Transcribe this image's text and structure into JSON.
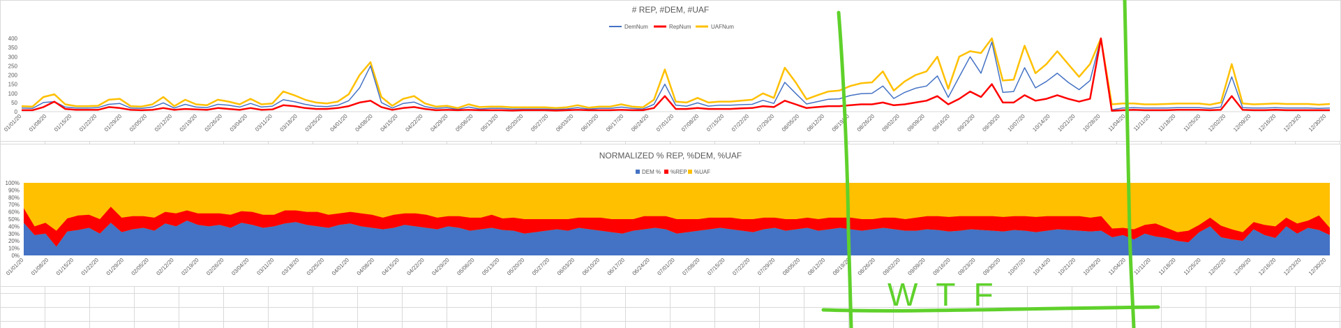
{
  "chart_data": [
    {
      "type": "line",
      "title": "# REP, #DEM, #UAF",
      "ylim": [
        0,
        400
      ],
      "yticks": [
        0,
        50,
        100,
        150,
        200,
        250,
        300,
        350,
        400
      ],
      "grid": false,
      "legend_position": "top",
      "x_start": "2020-01-01",
      "x_end": "2020-12-31",
      "xtick_labels": [
        "01/01/20",
        "01/08/20",
        "01/15/20",
        "01/22/20",
        "01/29/20",
        "02/05/20",
        "02/12/20",
        "02/19/20",
        "02/26/20",
        "03/04/20",
        "03/11/20",
        "03/18/20",
        "03/25/20",
        "04/01/20",
        "04/08/20",
        "04/15/20",
        "04/22/20",
        "04/29/20",
        "05/06/20",
        "05/13/20",
        "05/20/20",
        "05/27/20",
        "06/03/20",
        "06/10/20",
        "06/17/20",
        "06/24/20",
        "07/01/20",
        "07/08/20",
        "07/15/20",
        "07/22/20",
        "07/29/20",
        "08/05/20",
        "08/12/20",
        "08/19/20",
        "08/26/20",
        "09/02/20",
        "09/09/20",
        "09/16/20",
        "09/23/20",
        "09/30/20",
        "10/07/20",
        "10/14/20",
        "10/21/20",
        "10/28/20",
        "11/04/20",
        "11/11/20",
        "11/18/20",
        "11/25/20",
        "12/02/20",
        "12/09/20",
        "12/16/20",
        "12/23/20",
        "12/30/20"
      ],
      "series": [
        {
          "name": "DemNum",
          "color": "#4472c4",
          "values": [
            20,
            18,
            50,
            55,
            25,
            20,
            20,
            22,
            40,
            45,
            20,
            18,
            25,
            48,
            20,
            40,
            25,
            22,
            40,
            35,
            25,
            45,
            25,
            30,
            65,
            55,
            40,
            30,
            28,
            35,
            60,
            130,
            250,
            50,
            20,
            45,
            52,
            28,
            18,
            22,
            12,
            25,
            15,
            18,
            18,
            15,
            15,
            15,
            15,
            12,
            15,
            22,
            14,
            18,
            18,
            25,
            18,
            15,
            40,
            150,
            35,
            30,
            48,
            30,
            35,
            35,
            38,
            40,
            62,
            45,
            160,
            100,
            42,
            55,
            68,
            70,
            88,
            98,
            100,
            140,
            72,
            105,
            128,
            140,
            195,
            78,
            190,
            300,
            210,
            380,
            105,
            110,
            240,
            130,
            165,
            210,
            160,
            120,
            170,
            400,
            10,
            20,
            22,
            20,
            20,
            20,
            22,
            22,
            22,
            18,
            25,
            190,
            22,
            20,
            20,
            22,
            20,
            20,
            20,
            18,
            20
          ]
        },
        {
          "name": "RepNum",
          "color": "#ff0000",
          "values": [
            8,
            8,
            25,
            55,
            15,
            10,
            10,
            10,
            25,
            20,
            10,
            8,
            10,
            20,
            10,
            15,
            12,
            10,
            20,
            15,
            10,
            20,
            10,
            12,
            35,
            30,
            20,
            15,
            15,
            20,
            30,
            50,
            60,
            25,
            10,
            20,
            25,
            15,
            8,
            10,
            8,
            10,
            8,
            8,
            8,
            6,
            8,
            8,
            8,
            6,
            8,
            10,
            8,
            8,
            8,
            10,
            8,
            8,
            20,
            85,
            15,
            15,
            20,
            15,
            15,
            15,
            18,
            20,
            30,
            25,
            60,
            40,
            20,
            25,
            30,
            30,
            35,
            40,
            40,
            50,
            35,
            40,
            50,
            60,
            85,
            40,
            70,
            110,
            80,
            150,
            50,
            50,
            90,
            60,
            70,
            90,
            70,
            55,
            70,
            400,
            5,
            8,
            10,
            8,
            8,
            8,
            10,
            10,
            10,
            8,
            10,
            85,
            10,
            8,
            8,
            10,
            8,
            8,
            8,
            8,
            8
          ]
        },
        {
          "name": "UAFNum",
          "color": "#ffc000",
          "values": [
            30,
            28,
            80,
            95,
            40,
            30,
            30,
            32,
            65,
            70,
            30,
            28,
            40,
            80,
            30,
            65,
            40,
            35,
            65,
            55,
            40,
            70,
            40,
            45,
            110,
            90,
            65,
            50,
            45,
            55,
            95,
            200,
            270,
            80,
            32,
            70,
            85,
            45,
            28,
            32,
            20,
            40,
            25,
            28,
            28,
            24,
            24,
            24,
            24,
            20,
            24,
            35,
            22,
            28,
            28,
            40,
            28,
            24,
            65,
            230,
            55,
            50,
            75,
            50,
            55,
            55,
            60,
            65,
            100,
            75,
            240,
            160,
            68,
            90,
            110,
            115,
            140,
            155,
            160,
            220,
            115,
            165,
            200,
            220,
            300,
            125,
            300,
            330,
            320,
            400,
            170,
            175,
            360,
            210,
            260,
            330,
            260,
            190,
            260,
            400,
            40,
            45,
            45,
            40,
            40,
            42,
            44,
            44,
            44,
            38,
            50,
            260,
            45,
            40,
            42,
            45,
            42,
            42,
            42,
            38,
            42
          ]
        }
      ]
    },
    {
      "type": "area",
      "title": "NORMALIZED % REP, %DEM, %UAF",
      "ylim": [
        0,
        100
      ],
      "yticks": [
        "0%",
        "10%",
        "20%",
        "30%",
        "40%",
        "50%",
        "60%",
        "70%",
        "80%",
        "90%",
        "100%"
      ],
      "stacked": true,
      "grid": false,
      "legend_position": "top",
      "x_start": "2020-01-01",
      "x_end": "2020-12-31",
      "xtick_labels": [
        "01/01/20",
        "01/08/20",
        "01/15/20",
        "01/22/20",
        "01/29/20",
        "02/05/20",
        "02/12/20",
        "02/19/20",
        "02/26/20",
        "03/04/20",
        "03/11/20",
        "03/18/20",
        "03/25/20",
        "04/01/20",
        "04/08/20",
        "04/15/20",
        "04/22/20",
        "04/29/20",
        "05/06/20",
        "05/13/20",
        "05/20/20",
        "05/27/20",
        "06/03/20",
        "06/10/20",
        "06/17/20",
        "06/24/20",
        "07/01/20",
        "07/08/20",
        "07/15/20",
        "07/22/20",
        "07/29/20",
        "08/05/20",
        "08/12/20",
        "08/19/20",
        "08/26/20",
        "09/02/20",
        "09/09/20",
        "09/16/20",
        "09/23/20",
        "09/30/20",
        "10/07/20",
        "10/14/20",
        "10/21/20",
        "10/28/20",
        "11/04/20",
        "11/11/20",
        "11/18/20",
        "11/25/20",
        "12/02/20",
        "12/09/20",
        "12/16/20",
        "12/23/20",
        "12/30/20"
      ],
      "series": [
        {
          "name": "DEM %",
          "color": "#4472c4",
          "values": [
            45,
            28,
            30,
            12,
            33,
            35,
            38,
            30,
            45,
            32,
            36,
            38,
            34,
            44,
            40,
            48,
            42,
            40,
            42,
            38,
            45,
            42,
            38,
            40,
            44,
            46,
            42,
            40,
            38,
            42,
            44,
            40,
            38,
            36,
            38,
            42,
            40,
            38,
            36,
            40,
            38,
            34,
            36,
            38,
            35,
            34,
            30,
            32,
            34,
            36,
            34,
            38,
            36,
            34,
            32,
            30,
            34,
            36,
            38,
            36,
            30,
            32,
            34,
            36,
            38,
            36,
            34,
            32,
            36,
            38,
            34,
            36,
            38,
            34,
            36,
            38,
            36,
            34,
            36,
            38,
            36,
            34,
            34,
            36,
            35,
            33,
            34,
            36,
            35,
            34,
            33,
            35,
            34,
            32,
            34,
            36,
            35,
            34,
            33,
            34,
            25,
            28,
            22,
            30,
            26,
            24,
            20,
            18,
            32,
            40,
            25,
            22,
            20,
            36,
            28,
            24,
            40,
            30,
            38,
            35,
            28
          ]
        },
        {
          "name": "%REP",
          "color": "#ff0000",
          "values": [
            20,
            12,
            15,
            22,
            18,
            20,
            18,
            20,
            22,
            20,
            18,
            16,
            18,
            16,
            18,
            14,
            16,
            18,
            16,
            18,
            16,
            18,
            18,
            16,
            18,
            16,
            18,
            20,
            18,
            16,
            16,
            18,
            18,
            16,
            18,
            16,
            18,
            18,
            16,
            14,
            16,
            18,
            16,
            18,
            16,
            18,
            20,
            18,
            16,
            14,
            16,
            14,
            16,
            18,
            18,
            20,
            16,
            18,
            16,
            18,
            20,
            18,
            16,
            16,
            14,
            16,
            16,
            18,
            16,
            14,
            16,
            14,
            14,
            16,
            16,
            14,
            16,
            16,
            14,
            14,
            16,
            16,
            18,
            18,
            19,
            20,
            20,
            18,
            19,
            20,
            20,
            19,
            20,
            21,
            20,
            18,
            19,
            20,
            19,
            20,
            12,
            10,
            14,
            12,
            18,
            14,
            12,
            16,
            10,
            12,
            16,
            14,
            12,
            10,
            14,
            16,
            12,
            14,
            10,
            20,
            10
          ]
        }
      ]
    }
  ],
  "annotation_text": "WTF"
}
